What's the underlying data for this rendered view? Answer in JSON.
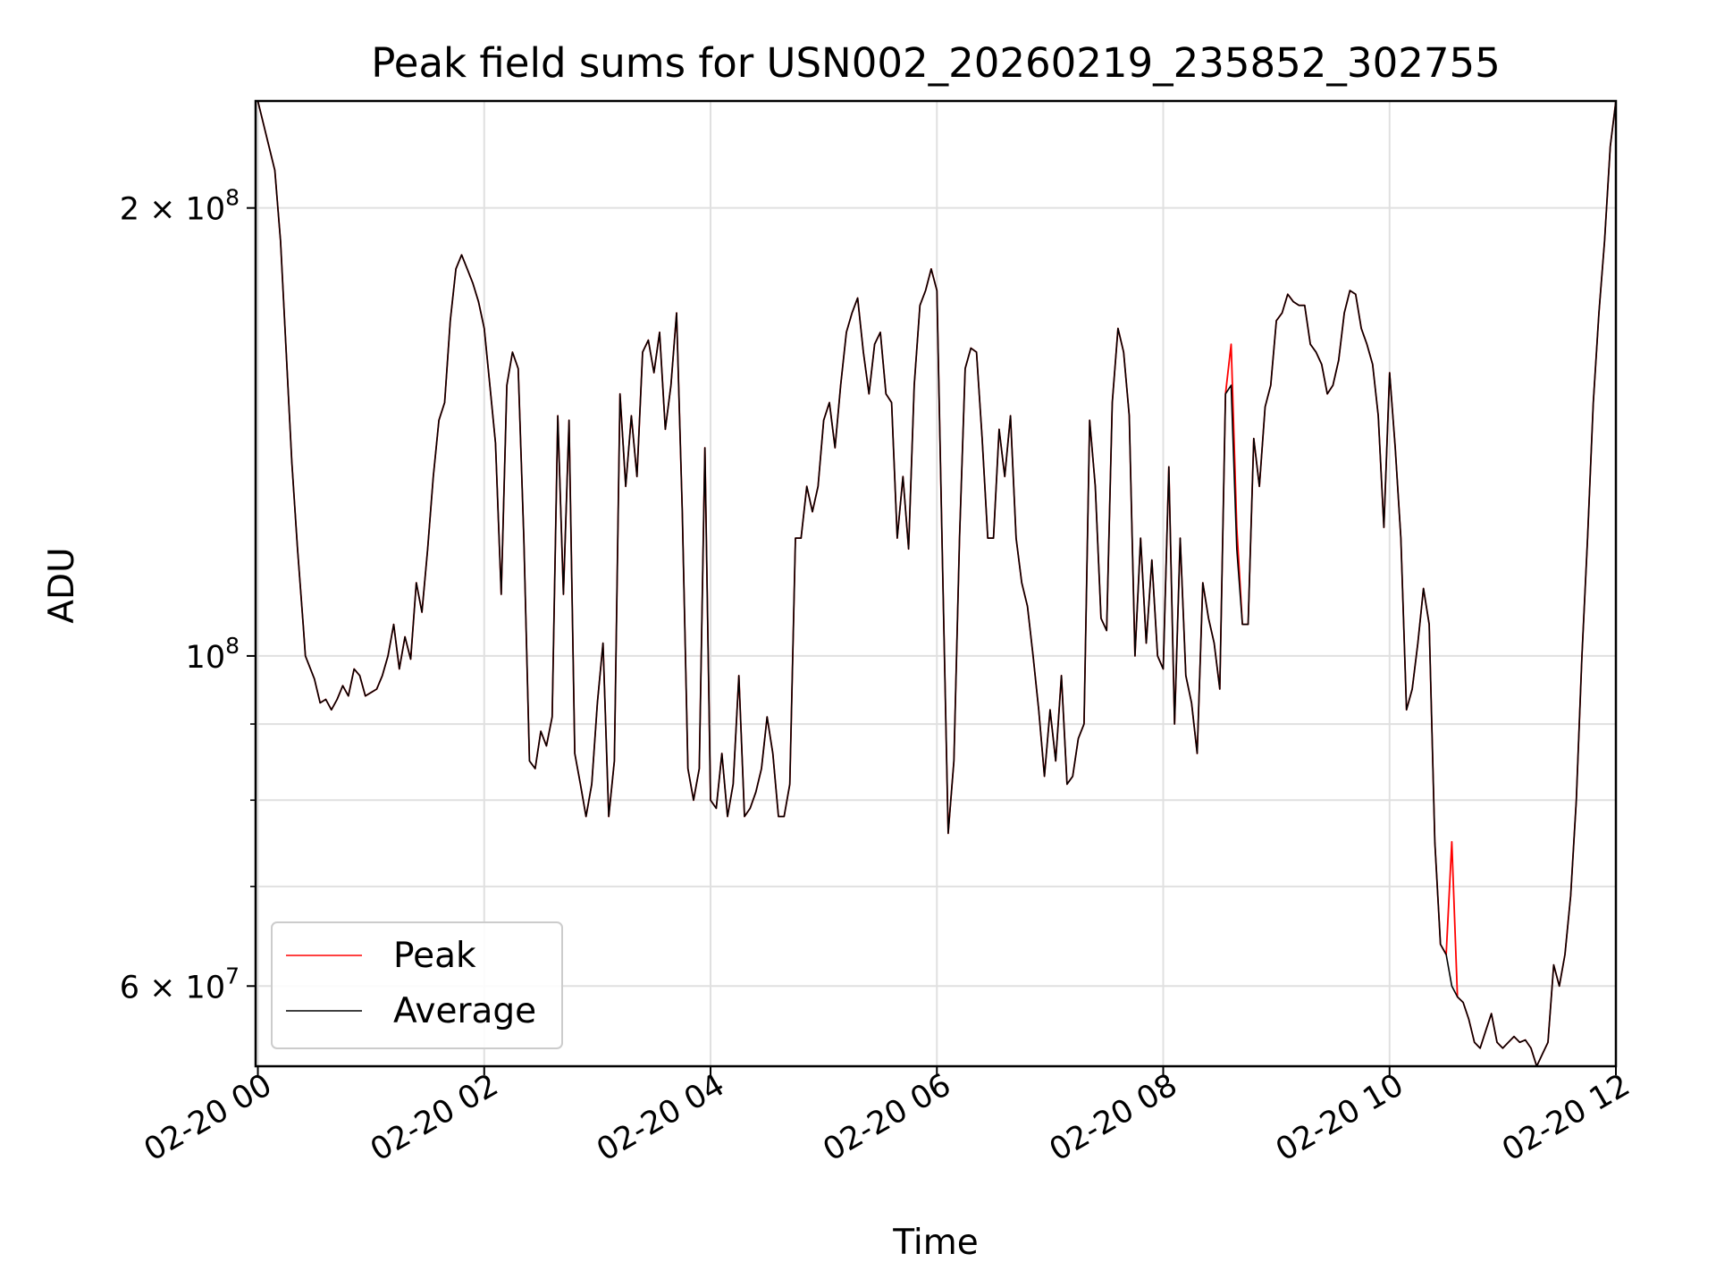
{
  "chart_data": {
    "type": "line",
    "title": "Peak field sums for USN002_20260219_235852_302755",
    "xlabel": "Time",
    "ylabel": "ADU",
    "yscale": "log",
    "ylim": [
      53000000,
      236000000
    ],
    "xlim_hours": [
      -0.02,
      12.0
    ],
    "x_ticks": [
      {
        "hour": 0,
        "label": "02-20 00"
      },
      {
        "hour": 2,
        "label": "02-20 02"
      },
      {
        "hour": 4,
        "label": "02-20 04"
      },
      {
        "hour": 6,
        "label": "02-20 06"
      },
      {
        "hour": 8,
        "label": "02-20 08"
      },
      {
        "hour": 10,
        "label": "02-20 10"
      },
      {
        "hour": 12,
        "label": "02-20 12"
      }
    ],
    "y_ticks": [
      {
        "value": 200000000,
        "base": "2 × 10",
        "exp": "8"
      },
      {
        "value": 100000000,
        "base": "10",
        "exp": "8"
      },
      {
        "value": 60000000,
        "base": "6 × 10",
        "exp": "7"
      }
    ],
    "y_minor_ticks": [
      70000000,
      80000000,
      90000000
    ],
    "grid": true,
    "legend_position": "lower-left",
    "legend": [
      "Peak",
      "Average"
    ],
    "colors": {
      "Peak": "#ff0000",
      "Average": "#000000",
      "grid": "#e0e0e0"
    },
    "x_hours": [
      0.0,
      0.15,
      0.2,
      0.3,
      0.35,
      0.4,
      0.42,
      0.5,
      0.55,
      0.6,
      0.65,
      0.7,
      0.75,
      0.8,
      0.85,
      0.9,
      0.95,
      1.0,
      1.05,
      1.1,
      1.15,
      1.2,
      1.25,
      1.3,
      1.35,
      1.4,
      1.45,
      1.5,
      1.55,
      1.6,
      1.65,
      1.7,
      1.75,
      1.8,
      1.85,
      1.9,
      1.95,
      2.0,
      2.05,
      2.1,
      2.15,
      2.2,
      2.25,
      2.3,
      2.35,
      2.4,
      2.45,
      2.5,
      2.55,
      2.6,
      2.65,
      2.7,
      2.75,
      2.8,
      2.85,
      2.9,
      2.95,
      3.0,
      3.05,
      3.1,
      3.15,
      3.2,
      3.25,
      3.3,
      3.35,
      3.4,
      3.45,
      3.5,
      3.55,
      3.6,
      3.65,
      3.7,
      3.75,
      3.8,
      3.85,
      3.9,
      3.95,
      4.0,
      4.05,
      4.1,
      4.15,
      4.2,
      4.25,
      4.3,
      4.35,
      4.4,
      4.45,
      4.5,
      4.55,
      4.6,
      4.65,
      4.7,
      4.75,
      4.8,
      4.85,
      4.9,
      4.95,
      5.0,
      5.05,
      5.1,
      5.15,
      5.2,
      5.25,
      5.3,
      5.35,
      5.4,
      5.45,
      5.5,
      5.55,
      5.6,
      5.65,
      5.7,
      5.75,
      5.8,
      5.85,
      5.9,
      5.95,
      6.0,
      6.05,
      6.1,
      6.15,
      6.2,
      6.25,
      6.3,
      6.35,
      6.4,
      6.45,
      6.5,
      6.55,
      6.6,
      6.65,
      6.7,
      6.75,
      6.8,
      6.85,
      6.9,
      6.95,
      7.0,
      7.05,
      7.1,
      7.15,
      7.2,
      7.25,
      7.3,
      7.35,
      7.4,
      7.45,
      7.5,
      7.55,
      7.6,
      7.65,
      7.7,
      7.75,
      7.8,
      7.85,
      7.9,
      7.95,
      8.0,
      8.05,
      8.1,
      8.15,
      8.2,
      8.25,
      8.3,
      8.35,
      8.4,
      8.45,
      8.5,
      8.55,
      8.6,
      8.65,
      8.7,
      8.75,
      8.8,
      8.85,
      8.9,
      8.95,
      9.0,
      9.05,
      9.1,
      9.15,
      9.2,
      9.25,
      9.3,
      9.35,
      9.4,
      9.45,
      9.5,
      9.55,
      9.6,
      9.65,
      9.7,
      9.75,
      9.8,
      9.85,
      9.9,
      9.95,
      10.0,
      10.05,
      10.1,
      10.15,
      10.2,
      10.25,
      10.3,
      10.35,
      10.4,
      10.45,
      10.5,
      10.55,
      10.6,
      10.65,
      10.7,
      10.75,
      10.8,
      10.85,
      10.9,
      10.95,
      11.0,
      11.05,
      11.1,
      11.15,
      11.2,
      11.25,
      11.3,
      11.35,
      11.4,
      11.45,
      11.5,
      11.55,
      11.6,
      11.65,
      11.7,
      11.75,
      11.8,
      11.85,
      11.9,
      11.95,
      12.0
    ],
    "series": [
      {
        "name": "Average",
        "values": [
          236000000.0,
          212000000.0,
          190000000.0,
          135000000.0,
          118000000.0,
          105000000.0,
          100000000.0,
          96500000.0,
          93000000.0,
          93500000.0,
          92000000.0,
          93500000.0,
          95500000.0,
          94000000.0,
          98000000.0,
          97000000.0,
          94000000.0,
          94500000.0,
          95000000.0,
          97000000.0,
          100000000.0,
          105000000.0,
          98000000.0,
          103000000.0,
          99500000.0,
          112000000.0,
          107000000.0,
          118000000.0,
          132000000.0,
          144000000.0,
          148000000.0,
          168000000.0,
          182000000.0,
          186000000.0,
          182000000.0,
          178000000.0,
          173000000.0,
          166000000.0,
          152000000.0,
          139000000.0,
          110000000.0,
          152000000.0,
          160000000.0,
          156000000.0,
          120000000.0,
          85000000.0,
          84000000.0,
          89000000.0,
          87000000.0,
          91000000.0,
          145000000.0,
          110000000.0,
          144000000.0,
          86000000.0,
          82000000.0,
          78000000.0,
          82000000.0,
          93000000.0,
          102000000.0,
          78000000.0,
          85000000.0,
          150000000.0,
          130000000.0,
          145000000.0,
          132000000.0,
          160000000.0,
          163000000.0,
          155000000.0,
          165000000.0,
          142000000.0,
          152000000.0,
          170000000.0,
          125000000.0,
          84000000.0,
          80000000.0,
          84000000.0,
          138000000.0,
          80000000.0,
          79000000.0,
          86000000.0,
          78000000.0,
          82000000.0,
          97000000.0,
          78000000.0,
          79000000.0,
          81000000.0,
          84000000.0,
          91000000.0,
          86000000.0,
          78000000.0,
          78000000.0,
          82000000.0,
          120000000.0,
          120000000.0,
          130000000.0,
          125000000.0,
          130000000.0,
          144000000.0,
          148000000.0,
          138000000.0,
          152000000.0,
          165000000.0,
          170000000.0,
          174000000.0,
          160000000.0,
          150000000.0,
          162000000.0,
          165000000.0,
          150000000.0,
          148000000.0,
          120000000.0,
          132000000.0,
          118000000.0,
          152000000.0,
          172000000.0,
          176000000.0,
          182000000.0,
          176000000.0,
          115000000.0,
          76000000.0,
          85000000.0,
          120000000.0,
          156000000.0,
          161000000.0,
          160000000.0,
          140000000.0,
          120000000.0,
          120000000.0,
          142000000.0,
          132000000.0,
          145000000.0,
          120000000.0,
          112000000.0,
          108000000.0,
          100000000.0,
          92000000.0,
          83000000.0,
          92000000.0,
          85000000.0,
          97000000.0,
          82000000.0,
          83000000.0,
          88000000.0,
          90000000.0,
          144000000.0,
          130000000.0,
          106000000.0,
          104000000.0,
          148000000.0,
          166000000.0,
          160000000.0,
          145000000.0,
          100000000.0,
          120000000.0,
          102000000.0,
          116000000.0,
          100000000.0,
          98000000.0,
          134000000.0,
          90000000.0,
          120000000.0,
          97000000.0,
          93000000.0,
          86000000.0,
          112000000.0,
          106000000.0,
          102000000.0,
          95000000.0,
          150000000.0,
          152000000.0,
          118000000.0,
          105000000.0,
          105000000.0,
          140000000.0,
          130000000.0,
          147000000.0,
          152000000.0,
          168000000.0,
          170000000.0,
          175000000.0,
          173000000.0,
          172000000.0,
          172000000.0,
          162000000.0,
          160000000.0,
          157000000.0,
          150000000.0,
          152000000.0,
          158000000.0,
          170000000.0,
          176000000.0,
          175000000.0,
          166000000.0,
          162000000.0,
          157000000.0,
          145000000.0,
          122000000.0,
          155000000.0,
          138000000.0,
          120000000.0,
          92000000.0,
          95000000.0,
          102000000.0,
          111000000.0,
          105000000.0,
          75000000.0,
          64000000.0,
          63000000.0,
          60000000.0,
          59000000.0,
          58500000.0,
          57000000.0,
          55000000.0,
          54500000.0,
          56000000.0,
          57500000.0,
          55000000.0,
          54500000.0,
          55000000.0,
          55500000.0,
          55000000.0,
          55200000.0,
          54500000.0,
          53000000.0,
          54000000.0,
          55000000.0,
          62000000.0,
          60000000.0,
          63000000.0,
          69000000.0,
          80000000.0,
          100000000.0,
          120000000.0,
          148000000.0,
          170000000.0,
          190000000.0,
          220000000.0,
          236000000.0
        ]
      },
      {
        "name": "Peak",
        "values": [
          236000000.0,
          212000000.0,
          190000000.0,
          135000000.0,
          118000000.0,
          105000000.0,
          100000000.0,
          96500000.0,
          93000000.0,
          93500000.0,
          92000000.0,
          93500000.0,
          95500000.0,
          94000000.0,
          98000000.0,
          97000000.0,
          94000000.0,
          94500000.0,
          95000000.0,
          97000000.0,
          100000000.0,
          105000000.0,
          98000000.0,
          103000000.0,
          99500000.0,
          112000000.0,
          107000000.0,
          118000000.0,
          132000000.0,
          144000000.0,
          148000000.0,
          168000000.0,
          182000000.0,
          186000000.0,
          182000000.0,
          178000000.0,
          173000000.0,
          166000000.0,
          152000000.0,
          139000000.0,
          110000000.0,
          152000000.0,
          160000000.0,
          156000000.0,
          120000000.0,
          85000000.0,
          84000000.0,
          89000000.0,
          87000000.0,
          91000000.0,
          145000000.0,
          110000000.0,
          144000000.0,
          86000000.0,
          82000000.0,
          78000000.0,
          82000000.0,
          93000000.0,
          102000000.0,
          78000000.0,
          85000000.0,
          150000000.0,
          130000000.0,
          145000000.0,
          132000000.0,
          160000000.0,
          163000000.0,
          155000000.0,
          165000000.0,
          142000000.0,
          152000000.0,
          170000000.0,
          125000000.0,
          84000000.0,
          80000000.0,
          84000000.0,
          138000000.0,
          80000000.0,
          79000000.0,
          86000000.0,
          78000000.0,
          82000000.0,
          97000000.0,
          78000000.0,
          79000000.0,
          81000000.0,
          84000000.0,
          91000000.0,
          86000000.0,
          78000000.0,
          78000000.0,
          82000000.0,
          120000000.0,
          120000000.0,
          130000000.0,
          125000000.0,
          130000000.0,
          144000000.0,
          148000000.0,
          138000000.0,
          152000000.0,
          165000000.0,
          170000000.0,
          174000000.0,
          160000000.0,
          150000000.0,
          162000000.0,
          165000000.0,
          150000000.0,
          148000000.0,
          120000000.0,
          132000000.0,
          118000000.0,
          152000000.0,
          172000000.0,
          176000000.0,
          182000000.0,
          176000000.0,
          115000000.0,
          76000000.0,
          85000000.0,
          120000000.0,
          156000000.0,
          161000000.0,
          160000000.0,
          140000000.0,
          120000000.0,
          120000000.0,
          142000000.0,
          132000000.0,
          145000000.0,
          120000000.0,
          112000000.0,
          108000000.0,
          100000000.0,
          92000000.0,
          83000000.0,
          92000000.0,
          85000000.0,
          97000000.0,
          82000000.0,
          83000000.0,
          88000000.0,
          90000000.0,
          144000000.0,
          130000000.0,
          106000000.0,
          104000000.0,
          148000000.0,
          166000000.0,
          160000000.0,
          145000000.0,
          100000000.0,
          120000000.0,
          102000000.0,
          116000000.0,
          100000000.0,
          98000000.0,
          134000000.0,
          90000000.0,
          120000000.0,
          97000000.0,
          93000000.0,
          86000000.0,
          112000000.0,
          106000000.0,
          102000000.0,
          95000000.0,
          150000000.0,
          162000000.0,
          122000000.0,
          105000000.0,
          105000000.0,
          140000000.0,
          130000000.0,
          147000000.0,
          152000000.0,
          168000000.0,
          170000000.0,
          175000000.0,
          173000000.0,
          172000000.0,
          172000000.0,
          162000000.0,
          160000000.0,
          157000000.0,
          150000000.0,
          152000000.0,
          158000000.0,
          170000000.0,
          176000000.0,
          175000000.0,
          166000000.0,
          162000000.0,
          157000000.0,
          145000000.0,
          122000000.0,
          155000000.0,
          138000000.0,
          120000000.0,
          92000000.0,
          95000000.0,
          102000000.0,
          111000000.0,
          105000000.0,
          75000000.0,
          64000000.0,
          63000000.0,
          75000000.0,
          59000000.0,
          58500000.0,
          57000000.0,
          55000000.0,
          54500000.0,
          56000000.0,
          57500000.0,
          55000000.0,
          54500000.0,
          55000000.0,
          55500000.0,
          55000000.0,
          55200000.0,
          54500000.0,
          53000000.0,
          54000000.0,
          55000000.0,
          62000000.0,
          60000000.0,
          63000000.0,
          69000000.0,
          80000000.0,
          100000000.0,
          120000000.0,
          148000000.0,
          170000000.0,
          190000000.0,
          220000000.0,
          236000000.0
        ]
      }
    ]
  }
}
